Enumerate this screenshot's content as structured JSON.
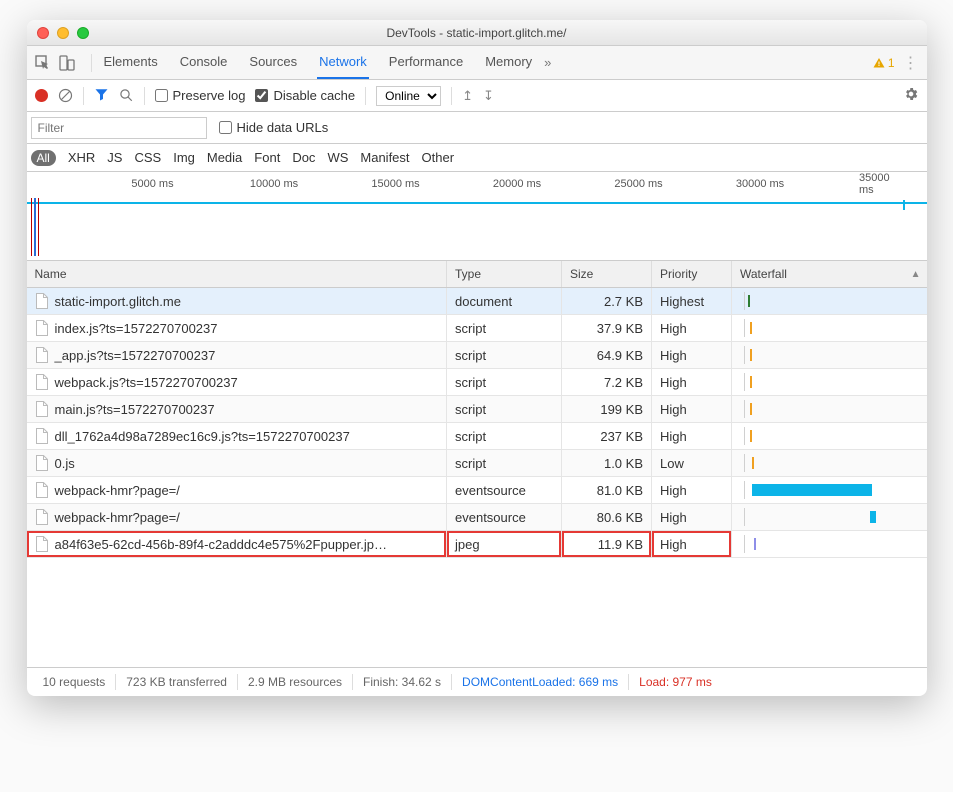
{
  "window": {
    "title": "DevTools - static-import.glitch.me/"
  },
  "panels": {
    "tabs": [
      "Elements",
      "Console",
      "Sources",
      "Network",
      "Performance",
      "Memory"
    ],
    "active": "Network",
    "warnings": "1"
  },
  "toolbar": {
    "preserve_log": "Preserve log",
    "disable_cache": "Disable cache",
    "throttle": "Online"
  },
  "filter": {
    "placeholder": "Filter",
    "hide_urls": "Hide data URLs"
  },
  "types": {
    "all": "All",
    "items": [
      "XHR",
      "JS",
      "CSS",
      "Img",
      "Media",
      "Font",
      "Doc",
      "WS",
      "Manifest",
      "Other"
    ]
  },
  "timeline": {
    "labels": [
      "5000 ms",
      "10000 ms",
      "15000 ms",
      "20000 ms",
      "25000 ms",
      "30000 ms",
      "35000 ms"
    ],
    "positions": [
      14,
      27.5,
      41,
      54.5,
      68,
      81.5,
      95
    ]
  },
  "table": {
    "headers": {
      "name": "Name",
      "type": "Type",
      "size": "Size",
      "priority": "Priority",
      "waterfall": "Waterfall"
    },
    "rows": [
      {
        "name": "static-import.glitch.me",
        "type": "document",
        "size": "2.7 KB",
        "priority": "Highest",
        "wf_start": 8,
        "wf_width": 2,
        "wf_color": "#2e7d32",
        "hl": false,
        "first": true
      },
      {
        "name": "index.js?ts=1572270700237",
        "type": "script",
        "size": "37.9 KB",
        "priority": "High",
        "wf_start": 10,
        "wf_width": 2,
        "wf_color": "#f0a020",
        "hl": false
      },
      {
        "name": "_app.js?ts=1572270700237",
        "type": "script",
        "size": "64.9 KB",
        "priority": "High",
        "wf_start": 10,
        "wf_width": 2,
        "wf_color": "#f0a020",
        "hl": false
      },
      {
        "name": "webpack.js?ts=1572270700237",
        "type": "script",
        "size": "7.2 KB",
        "priority": "High",
        "wf_start": 10,
        "wf_width": 2,
        "wf_color": "#f0a020",
        "hl": false
      },
      {
        "name": "main.js?ts=1572270700237",
        "type": "script",
        "size": "199 KB",
        "priority": "High",
        "wf_start": 10,
        "wf_width": 2,
        "wf_color": "#f0a020",
        "hl": false
      },
      {
        "name": "dll_1762a4d98a7289ec16c9.js?ts=1572270700237",
        "type": "script",
        "size": "237 KB",
        "priority": "High",
        "wf_start": 10,
        "wf_width": 2,
        "wf_color": "#f0a020",
        "hl": false
      },
      {
        "name": "0.js",
        "type": "script",
        "size": "1.0 KB",
        "priority": "Low",
        "wf_start": 12,
        "wf_width": 2,
        "wf_color": "#f0a020",
        "hl": false
      },
      {
        "name": "webpack-hmr?page=/",
        "type": "eventsource",
        "size": "81.0 KB",
        "priority": "High",
        "wf_start": 12,
        "wf_width": 120,
        "wf_color": "#0cb4e8",
        "hl": false
      },
      {
        "name": "webpack-hmr?page=/",
        "type": "eventsource",
        "size": "80.6 KB",
        "priority": "High",
        "wf_start": 130,
        "wf_width": 6,
        "wf_color": "#0cb4e8",
        "hl": false
      },
      {
        "name": "a84f63e5-62cd-456b-89f4-c2adddc4e575%2Fpupper.jp…",
        "type": "jpeg",
        "size": "11.9 KB",
        "priority": "High",
        "wf_start": 14,
        "wf_width": 2,
        "wf_color": "#8e8ee8",
        "hl": true
      }
    ]
  },
  "status": {
    "requests": "10 requests",
    "transferred": "723 KB transferred",
    "resources": "2.9 MB resources",
    "finish": "Finish: 34.62 s",
    "dcl": "DOMContentLoaded: 669 ms",
    "load": "Load: 977 ms"
  }
}
